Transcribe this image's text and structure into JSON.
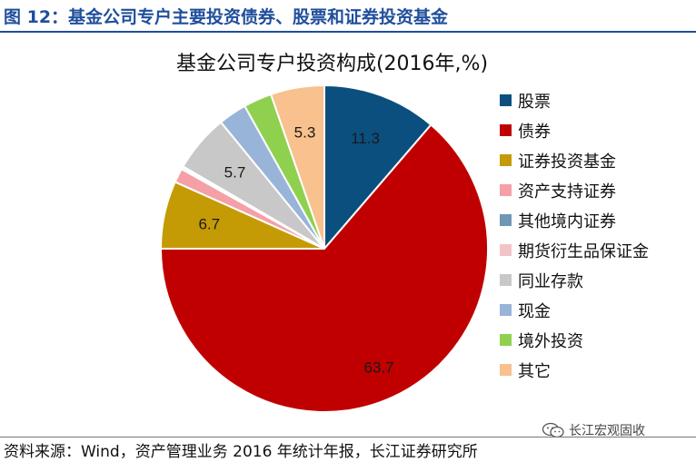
{
  "figure": {
    "title": "图 12：基金公司专户主要投资债券、股票和证券投资基金"
  },
  "source_note": "资料来源：Wind，资产管理业务 2016 年统计年报，长江证券研究所",
  "watermark": {
    "text": "长江宏观固收",
    "icon": "wechat-icon"
  },
  "chart_data": {
    "type": "pie",
    "title": "基金公司专户投资构成(2016年,%)",
    "legend_position": "right",
    "start_angle_deg": 0,
    "direction": "clockwise",
    "slices": [
      {
        "name": "股票",
        "value": 11.3,
        "color": "#0b4f7f",
        "label": "11.3"
      },
      {
        "name": "债券",
        "value": 63.7,
        "color": "#c00000",
        "label": "63.7"
      },
      {
        "name": "证券投资基金",
        "value": 6.7,
        "color": "#c49b04",
        "label": "6.7"
      },
      {
        "name": "资产支持证券",
        "value": 1.4,
        "color": "#f4a0a6",
        "label": ""
      },
      {
        "name": "其他境内证券",
        "value": 0.2,
        "color": "#6e97b3",
        "label": ""
      },
      {
        "name": "期货衍生品保证金",
        "value": 0.1,
        "color": "#f2c4c8",
        "label": ""
      },
      {
        "name": "同业存款",
        "value": 5.7,
        "color": "#c8c8c8",
        "label": "5.7"
      },
      {
        "name": "现金",
        "value": 2.8,
        "color": "#98b4d8",
        "label": ""
      },
      {
        "name": "境外投资",
        "value": 2.8,
        "color": "#8fd14f",
        "label": ""
      },
      {
        "name": "其它",
        "value": 5.3,
        "color": "#f8c18d",
        "label": "5.3"
      }
    ]
  }
}
